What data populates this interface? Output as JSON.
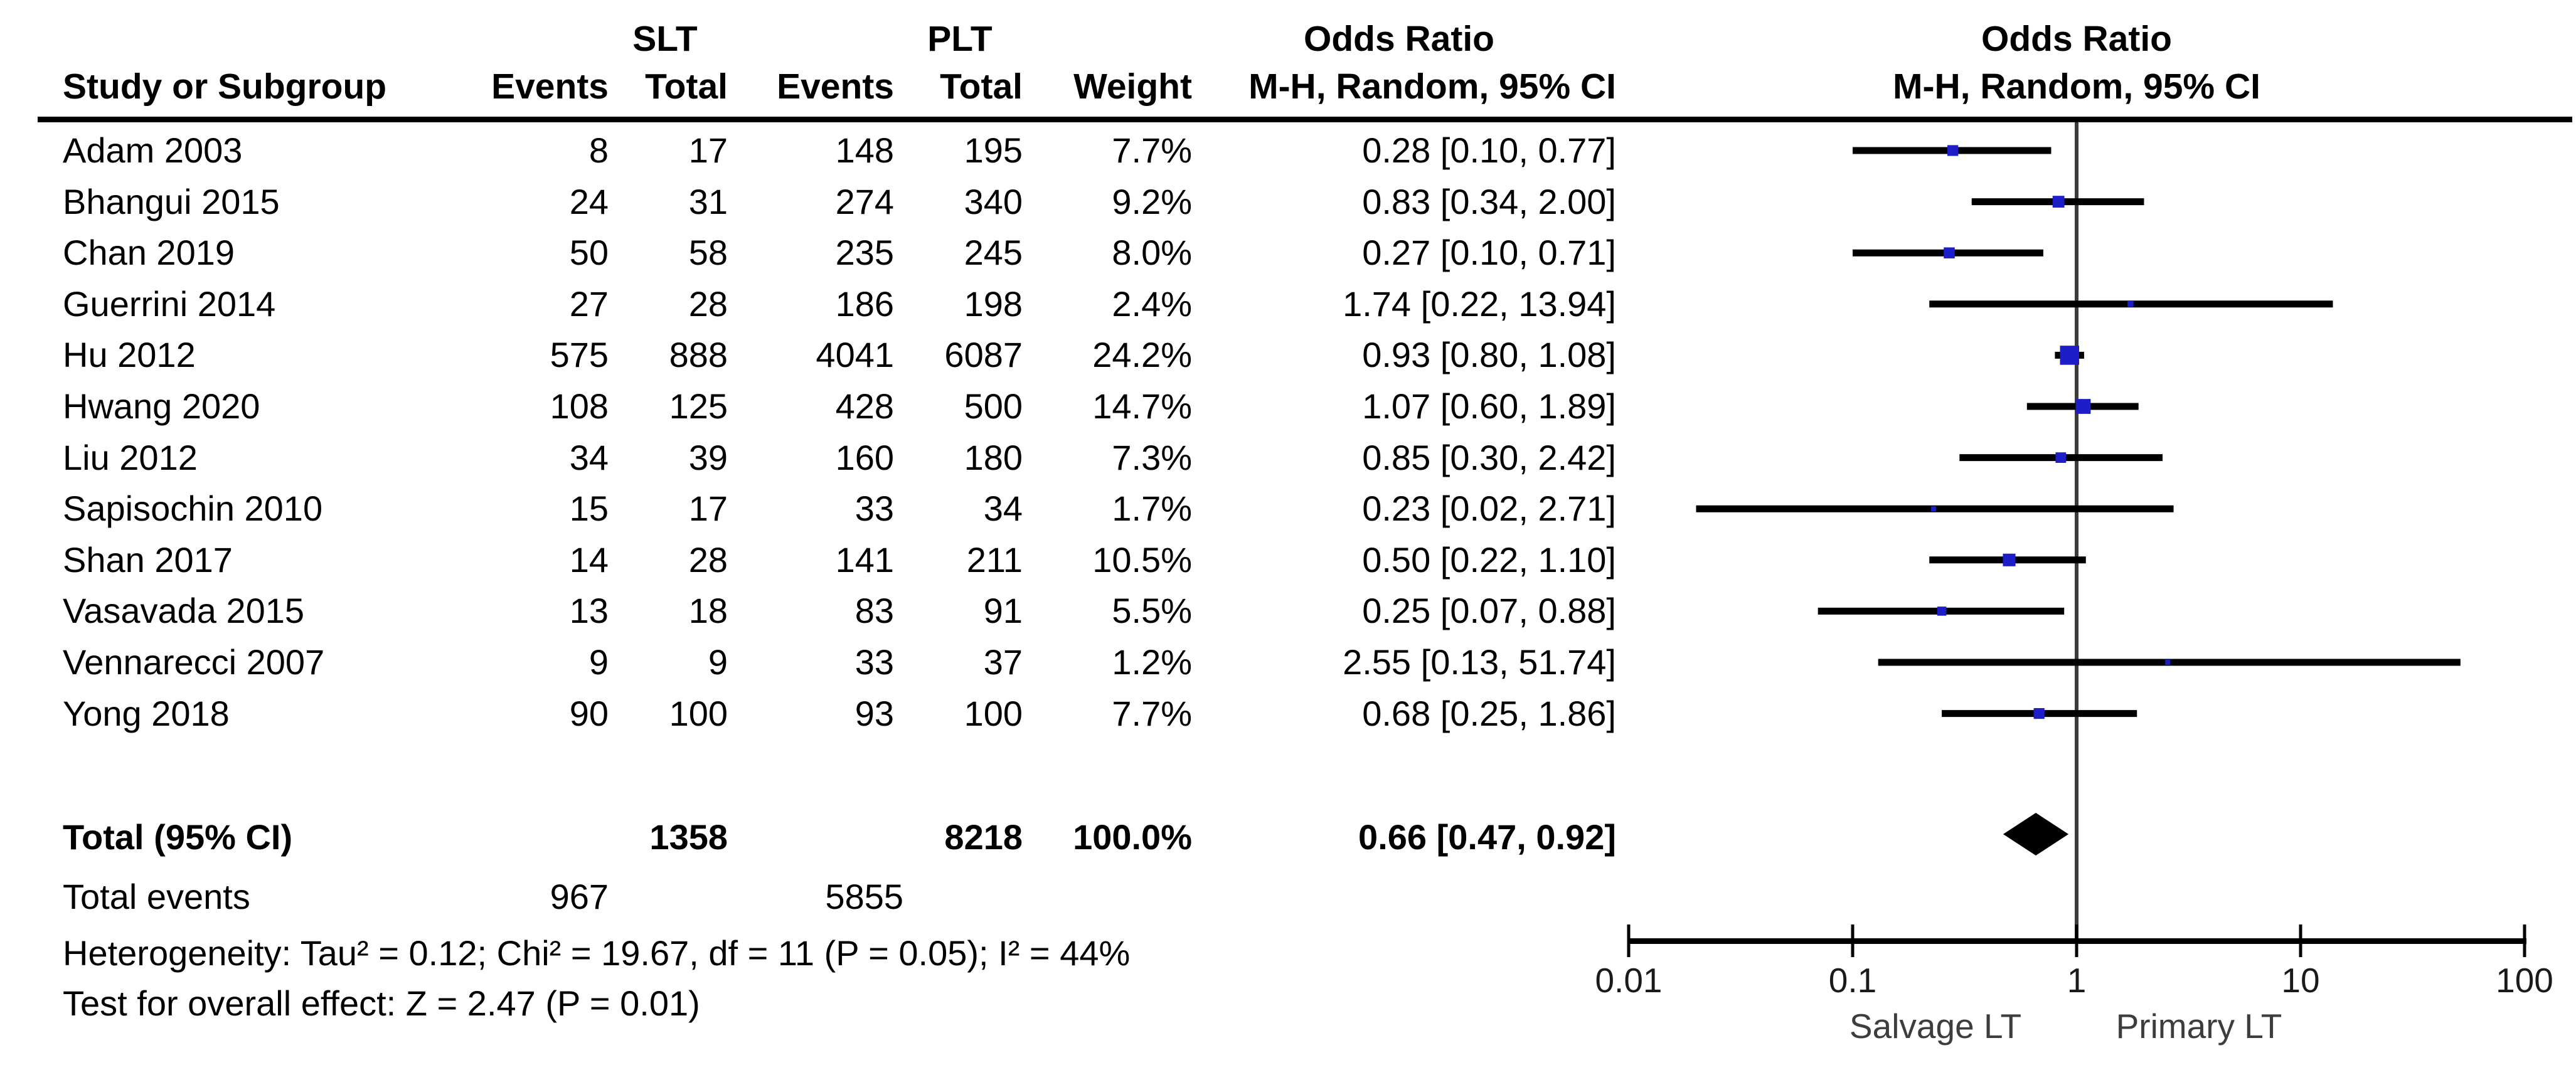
{
  "header": {
    "study_col": "Study or Subgroup",
    "group1": "SLT",
    "group2": "PLT",
    "events_col1": "Events",
    "total_col1": "Total",
    "events_col2": "Events",
    "total_col2": "Total",
    "weight_col": "Weight",
    "or_title_left": "Odds Ratio",
    "or_method_left": "M-H, Random, 95% CI",
    "or_title_right": "Odds Ratio",
    "or_method_right": "M-H, Random, 95% CI"
  },
  "rows": [
    {
      "study": "Adam 2003",
      "slt_events": "8",
      "slt_total": "17",
      "plt_events": "148",
      "plt_total": "195",
      "weight": "7.7%",
      "or_ci": "0.28 [0.10, 0.77]"
    },
    {
      "study": "Bhangui 2015",
      "slt_events": "24",
      "slt_total": "31",
      "plt_events": "274",
      "plt_total": "340",
      "weight": "9.2%",
      "or_ci": "0.83 [0.34, 2.00]"
    },
    {
      "study": "Chan 2019",
      "slt_events": "50",
      "slt_total": "58",
      "plt_events": "235",
      "plt_total": "245",
      "weight": "8.0%",
      "or_ci": "0.27 [0.10, 0.71]"
    },
    {
      "study": "Guerrini 2014",
      "slt_events": "27",
      "slt_total": "28",
      "plt_events": "186",
      "plt_total": "198",
      "weight": "2.4%",
      "or_ci": "1.74 [0.22, 13.94]"
    },
    {
      "study": "Hu 2012",
      "slt_events": "575",
      "slt_total": "888",
      "plt_events": "4041",
      "plt_total": "6087",
      "weight": "24.2%",
      "or_ci": "0.93 [0.80, 1.08]"
    },
    {
      "study": "Hwang 2020",
      "slt_events": "108",
      "slt_total": "125",
      "plt_events": "428",
      "plt_total": "500",
      "weight": "14.7%",
      "or_ci": "1.07 [0.60, 1.89]"
    },
    {
      "study": "Liu 2012",
      "slt_events": "34",
      "slt_total": "39",
      "plt_events": "160",
      "plt_total": "180",
      "weight": "7.3%",
      "or_ci": "0.85 [0.30, 2.42]"
    },
    {
      "study": "Sapisochin 2010",
      "slt_events": "15",
      "slt_total": "17",
      "plt_events": "33",
      "plt_total": "34",
      "weight": "1.7%",
      "or_ci": "0.23 [0.02, 2.71]"
    },
    {
      "study": "Shan 2017",
      "slt_events": "14",
      "slt_total": "28",
      "plt_events": "141",
      "plt_total": "211",
      "weight": "10.5%",
      "or_ci": "0.50 [0.22, 1.10]"
    },
    {
      "study": "Vasavada 2015",
      "slt_events": "13",
      "slt_total": "18",
      "plt_events": "83",
      "plt_total": "91",
      "weight": "5.5%",
      "or_ci": "0.25 [0.07, 0.88]"
    },
    {
      "study": "Vennarecci 2007",
      "slt_events": "9",
      "slt_total": "9",
      "plt_events": "33",
      "plt_total": "37",
      "weight": "1.2%",
      "or_ci": "2.55 [0.13, 51.74]"
    },
    {
      "study": "Yong 2018",
      "slt_events": "90",
      "slt_total": "100",
      "plt_events": "93",
      "plt_total": "100",
      "weight": "7.7%",
      "or_ci": "0.68 [0.25, 1.86]"
    }
  ],
  "totals": {
    "label": "Total (95% CI)",
    "slt_total": "1358",
    "plt_total": "8218",
    "weight": "100.0%",
    "or_ci": "0.66 [0.47, 0.92]",
    "events_label": "Total events",
    "slt_events": "967",
    "plt_events": "5855"
  },
  "footer": {
    "heterogeneity": "Heterogeneity: Tau² = 0.12; Chi² = 19.67, df = 11 (P = 0.05); I² = 44%",
    "overall_effect": "Test for overall effect: Z = 2.47 (P = 0.01)"
  },
  "chart_data": {
    "type": "forest",
    "title": "Odds Ratio",
    "method": "M-H, Random, 95% CI",
    "x_axis": {
      "scale": "log",
      "ticks": [
        0.01,
        0.1,
        1,
        10,
        100
      ],
      "tick_labels": [
        "0.01",
        "0.1",
        "1",
        "10",
        "100"
      ],
      "null_line": 1,
      "left_label": "Salvage LT",
      "right_label": "Primary LT"
    },
    "studies": [
      {
        "name": "Adam 2003",
        "or": 0.28,
        "ci_low": 0.1,
        "ci_high": 0.77,
        "weight_pct": 7.7
      },
      {
        "name": "Bhangui 2015",
        "or": 0.83,
        "ci_low": 0.34,
        "ci_high": 2.0,
        "weight_pct": 9.2
      },
      {
        "name": "Chan 2019",
        "or": 0.27,
        "ci_low": 0.1,
        "ci_high": 0.71,
        "weight_pct": 8.0
      },
      {
        "name": "Guerrini 2014",
        "or": 1.74,
        "ci_low": 0.22,
        "ci_high": 13.94,
        "weight_pct": 2.4
      },
      {
        "name": "Hu 2012",
        "or": 0.93,
        "ci_low": 0.8,
        "ci_high": 1.08,
        "weight_pct": 24.2
      },
      {
        "name": "Hwang 2020",
        "or": 1.07,
        "ci_low": 0.6,
        "ci_high": 1.89,
        "weight_pct": 14.7
      },
      {
        "name": "Liu 2012",
        "or": 0.85,
        "ci_low": 0.3,
        "ci_high": 2.42,
        "weight_pct": 7.3
      },
      {
        "name": "Sapisochin 2010",
        "or": 0.23,
        "ci_low": 0.02,
        "ci_high": 2.71,
        "weight_pct": 1.7
      },
      {
        "name": "Shan 2017",
        "or": 0.5,
        "ci_low": 0.22,
        "ci_high": 1.1,
        "weight_pct": 10.5
      },
      {
        "name": "Vasavada 2015",
        "or": 0.25,
        "ci_low": 0.07,
        "ci_high": 0.88,
        "weight_pct": 5.5
      },
      {
        "name": "Vennarecci 2007",
        "or": 2.55,
        "ci_low": 0.13,
        "ci_high": 51.74,
        "weight_pct": 1.2
      },
      {
        "name": "Yong 2018",
        "or": 0.68,
        "ci_low": 0.25,
        "ci_high": 1.86,
        "weight_pct": 7.7
      }
    ],
    "total": {
      "or": 0.66,
      "ci_low": 0.47,
      "ci_high": 0.92
    },
    "marker_color": "#1E1EC8",
    "ci_line_color": "#000000",
    "diamond_color": "#000000",
    "null_line_color": "#3c3c3c"
  }
}
